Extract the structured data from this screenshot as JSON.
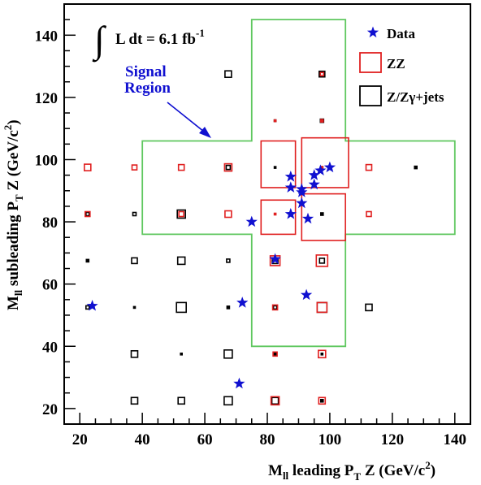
{
  "chart_data": {
    "type": "scatter",
    "title": "",
    "xlabel": {
      "main": "M",
      "sub": "ll",
      "mid": " leading P",
      "sub2": "T",
      "tail": " Z (GeV/c",
      "sup": "2",
      "end": ")"
    },
    "ylabel": {
      "main": "M",
      "sub": "ll",
      "mid": " subleading P",
      "sub2": "T",
      "tail": " Z (GeV/c",
      "sup": "2",
      "end": ")"
    },
    "xlim": [
      15,
      145
    ],
    "ylim": [
      15,
      150
    ],
    "xticks": [
      "20",
      "40",
      "60",
      "80",
      "100",
      "120",
      "140"
    ],
    "yticks": [
      "20",
      "40",
      "60",
      "80",
      "100",
      "120",
      "140"
    ],
    "xtick_values": [
      20,
      40,
      60,
      80,
      100,
      120,
      140
    ],
    "ytick_values": [
      20,
      40,
      60,
      80,
      100,
      120,
      140
    ],
    "grid": false,
    "legend_position": "top-right",
    "annotations": {
      "luminosity": {
        "prefix": "∫",
        "text": "L dt = 6.1 fb",
        "sup": "-1"
      },
      "signal_region_line1": "Signal",
      "signal_region_line2": "Region"
    },
    "colors": {
      "data": "#1010d0",
      "zz": "#e02020",
      "zjets": "#000000",
      "signal_region": "#5fc75f",
      "arrow": "#1010d0"
    },
    "signal_region_polygon": [
      [
        40,
        76
      ],
      [
        40,
        106
      ],
      [
        75,
        106
      ],
      [
        75,
        145
      ],
      [
        105,
        145
      ],
      [
        105,
        106
      ],
      [
        140,
        106
      ],
      [
        140,
        76
      ],
      [
        105,
        76
      ],
      [
        105,
        40
      ],
      [
        75,
        40
      ],
      [
        75,
        76
      ]
    ],
    "inner_boxes": [
      {
        "x": [
          78,
          89
        ],
        "y": [
          91,
          106
        ]
      },
      {
        "x": [
          91,
          106
        ],
        "y": [
          91,
          107
        ]
      },
      {
        "x": [
          78,
          89
        ],
        "y": [
          76,
          87
        ]
      },
      {
        "x": [
          91,
          105
        ],
        "y": [
          74,
          89
        ]
      }
    ],
    "series": [
      {
        "name": "Data",
        "marker": "star",
        "points": [
          [
            24,
            53
          ],
          [
            72,
            54
          ],
          [
            71,
            28
          ],
          [
            75,
            80
          ],
          [
            82.5,
            68
          ],
          [
            87.5,
            94.5
          ],
          [
            87.5,
            91
          ],
          [
            87.5,
            82.5
          ],
          [
            91,
            86
          ],
          [
            91,
            89.5
          ],
          [
            91,
            90.5
          ],
          [
            92.5,
            56.5
          ],
          [
            93,
            81
          ],
          [
            95,
            92
          ],
          [
            95,
            95
          ],
          [
            97,
            96.5
          ],
          [
            100,
            97.5
          ]
        ]
      },
      {
        "name": "ZZ",
        "marker": "box",
        "cells": [
          [
            22.5,
            97.5,
            8
          ],
          [
            22.5,
            82.5,
            6
          ],
          [
            37.5,
            97.5,
            6
          ],
          [
            52.5,
            97.5,
            7
          ],
          [
            67.5,
            97.5,
            9
          ],
          [
            82.5,
            112.5,
            2
          ],
          [
            97.5,
            112.5,
            3
          ],
          [
            97.5,
            127.5,
            4
          ],
          [
            112.5,
            97.5,
            7
          ],
          [
            112.5,
            82.5,
            6
          ],
          [
            67.5,
            82.5,
            8
          ],
          [
            82.5,
            67.5,
            12
          ],
          [
            97.5,
            67.5,
            14
          ],
          [
            82.5,
            52.5,
            6
          ],
          [
            82.5,
            37.5,
            5
          ],
          [
            97.5,
            37.5,
            9
          ],
          [
            82.5,
            22.5,
            10
          ],
          [
            97.5,
            22.5,
            8
          ],
          [
            97.5,
            52.5,
            12
          ],
          [
            82.5,
            82.5,
            2
          ],
          [
            52.5,
            82.5,
            6
          ],
          [
            97.5,
            97.5,
            2
          ]
        ]
      },
      {
        "name": "Z/Zγ+jets",
        "marker": "box",
        "cells": [
          [
            22.5,
            82.5,
            4
          ],
          [
            22.5,
            67.5,
            3
          ],
          [
            22.5,
            52.5,
            4
          ],
          [
            37.5,
            82.5,
            4
          ],
          [
            37.5,
            67.5,
            7
          ],
          [
            37.5,
            52.5,
            2
          ],
          [
            37.5,
            37.5,
            8
          ],
          [
            37.5,
            22.5,
            8
          ],
          [
            52.5,
            82.5,
            10
          ],
          [
            52.5,
            67.5,
            9
          ],
          [
            52.5,
            52.5,
            12
          ],
          [
            52.5,
            37.5,
            2
          ],
          [
            52.5,
            22.5,
            8
          ],
          [
            67.5,
            127.5,
            8
          ],
          [
            67.5,
            97.5,
            5
          ],
          [
            67.5,
            67.5,
            4
          ],
          [
            67.5,
            52.5,
            3
          ],
          [
            67.5,
            37.5,
            10
          ],
          [
            67.5,
            22.5,
            10
          ],
          [
            82.5,
            112.5,
            2
          ],
          [
            82.5,
            97.5,
            2
          ],
          [
            82.5,
            67.5,
            7
          ],
          [
            82.5,
            52.5,
            4
          ],
          [
            82.5,
            37.5,
            3
          ],
          [
            82.5,
            22.5,
            8
          ],
          [
            97.5,
            127.5,
            7
          ],
          [
            97.5,
            112.5,
            4
          ],
          [
            97.5,
            97.5,
            2
          ],
          [
            97.5,
            82.5,
            3
          ],
          [
            97.5,
            67.5,
            6
          ],
          [
            97.5,
            52.5,
            12
          ],
          [
            97.5,
            37.5,
            2
          ],
          [
            97.5,
            22.5,
            3
          ],
          [
            112.5,
            52.5,
            8
          ],
          [
            127.5,
            97.5,
            3
          ]
        ]
      }
    ]
  }
}
